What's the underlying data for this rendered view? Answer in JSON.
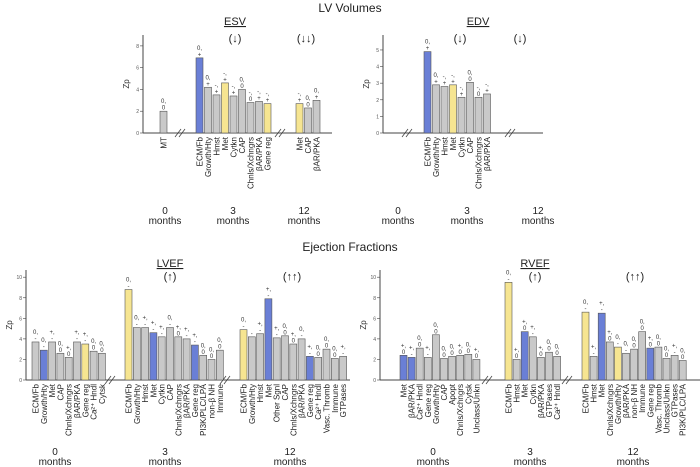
{
  "titles": {
    "top": "LV Volumes",
    "bottom": "Ejection Fractions"
  },
  "colors": {
    "gray": "#c9c9c9",
    "blue": "#6a7fd6",
    "yellow": "#f6e591",
    "axis": "#444444"
  },
  "chart_data": [
    {
      "type": "bar",
      "title": "ESV",
      "ylabel": "Zp",
      "ylim": [
        0,
        9
      ],
      "yticks": [
        0,
        2,
        4,
        6,
        8
      ],
      "groups": [
        {
          "time": "0",
          "unit": "months",
          "arrow": "",
          "bars": [
            {
              "label": "MT",
              "value": 2.0,
              "color": "gray",
              "note": "0,|0"
            }
          ]
        },
        {
          "time": "3",
          "unit": "months",
          "arrow": "(↓)",
          "bars": [
            {
              "label": "ECM/Fb",
              "value": 6.9,
              "color": "blue",
              "note": "0,|+"
            },
            {
              "label": "Growth/Hty",
              "value": 4.2,
              "color": "gray",
              "note": "0,|+"
            },
            {
              "label": "Hmst",
              "value": 3.5,
              "color": "gray",
              "note": "-,|+"
            },
            {
              "label": "Met",
              "value": 4.6,
              "color": "yellow",
              "note": "-,|+"
            },
            {
              "label": "Cytkn",
              "value": 3.4,
              "color": "gray",
              "note": "-,|+"
            },
            {
              "label": "CAP",
              "value": 4.0,
              "color": "gray",
              "note": "0,|0"
            },
            {
              "label": "Chnls/Xchngrs",
              "value": 2.8,
              "color": "gray",
              "note": "-,|0"
            },
            {
              "label": "βAR/PKA",
              "value": 2.9,
              "color": "gray",
              "note": "-,|+"
            },
            {
              "label": "Gene reg",
              "value": 2.7,
              "color": "yellow",
              "note": "-,|+"
            }
          ]
        },
        {
          "time": "12",
          "unit": "months",
          "arrow": "(↓↓)",
          "bars": [
            {
              "label": "Met",
              "value": 2.7,
              "color": "yellow",
              "note": "-,|+"
            },
            {
              "label": "CAP",
              "value": 2.3,
              "color": "gray",
              "note": "0,|0"
            },
            {
              "label": "βAR/PKA",
              "value": 3.0,
              "color": "gray",
              "note": "0,|+"
            }
          ]
        }
      ]
    },
    {
      "type": "bar",
      "title": "EDV",
      "ylabel": "Zp",
      "ylim": [
        0,
        5.9
      ],
      "yticks": [
        0,
        1,
        2,
        3,
        4,
        5
      ],
      "groups": [
        {
          "time": "0",
          "unit": "months",
          "arrow": "",
          "bars": []
        },
        {
          "time": "3",
          "unit": "months",
          "arrow": "(↓)",
          "bars": [
            {
              "label": "ECM/Fb",
              "value": 4.9,
              "color": "blue",
              "note": "0,|+"
            },
            {
              "label": "Growth/Hty",
              "value": 2.9,
              "color": "gray",
              "note": "0,|+"
            },
            {
              "label": "Hmst",
              "value": 2.8,
              "color": "gray",
              "note": "-,|+"
            },
            {
              "label": "Met",
              "value": 2.9,
              "color": "yellow",
              "note": "-,|+"
            },
            {
              "label": "Cytkn",
              "value": 2.15,
              "color": "gray",
              "note": "-,|+"
            },
            {
              "label": "CAP",
              "value": 3.05,
              "color": "gray",
              "note": "0,|0"
            },
            {
              "label": "Chnls/Xchngrs",
              "value": 2.15,
              "color": "gray",
              "note": "-,|0"
            },
            {
              "label": "βAR/PKA",
              "value": 2.35,
              "color": "gray",
              "note": "-,|+"
            }
          ]
        },
        {
          "time": "12",
          "unit": "months",
          "arrow": "(↓)",
          "bars": []
        }
      ]
    },
    {
      "type": "bar",
      "title": "LVEF",
      "ylabel": "Zp",
      "ylim": [
        0,
        10.7
      ],
      "yticks": [
        0,
        2,
        4,
        6,
        8,
        10
      ],
      "groups": [
        {
          "time": "0",
          "unit": "months",
          "arrow": "",
          "bars": [
            {
              "label": "ECM/Fb",
              "value": 3.7,
              "color": "gray",
              "note": "0,|-"
            },
            {
              "label": "Growth/Hty",
              "value": 2.9,
              "color": "blue",
              "note": "0,|-"
            },
            {
              "label": "Met",
              "value": 3.7,
              "color": "gray",
              "note": "+,|-"
            },
            {
              "label": "CAP",
              "value": 2.6,
              "color": "gray",
              "note": "0,|0"
            },
            {
              "label": "Chnls/Xchngrs",
              "value": 2.2,
              "color": "gray",
              "note": "+,|0"
            },
            {
              "label": "βAR/PKA",
              "value": 3.7,
              "color": "gray",
              "note": "+,|-"
            },
            {
              "label": "Gene reg",
              "value": 3.5,
              "color": "yellow",
              "note": "+,|-"
            },
            {
              "label": "Ca²⁺ Hndl",
              "value": 2.8,
              "color": "gray",
              "note": "0,|0"
            },
            {
              "label": "Cytsk",
              "value": 2.6,
              "color": "gray",
              "note": "0,|0"
            }
          ]
        },
        {
          "time": "3",
          "unit": "months",
          "arrow": "(↑)",
          "bars": [
            {
              "label": "ECM/Fb",
              "value": 8.8,
              "color": "yellow",
              "note": "0,|-"
            },
            {
              "label": "Growth/Hty",
              "value": 5.1,
              "color": "gray",
              "note": "0,|-"
            },
            {
              "label": "Hmst",
              "value": 5.1,
              "color": "gray",
              "note": "+,|-"
            },
            {
              "label": "Met",
              "value": 4.6,
              "color": "blue",
              "note": "+,|-"
            },
            {
              "label": "Cytkn",
              "value": 4.2,
              "color": "gray",
              "note": "+,|-"
            },
            {
              "label": "CAP",
              "value": 5.1,
              "color": "gray",
              "note": "0,|-"
            },
            {
              "label": "Chnls/Xchngrs",
              "value": 4.2,
              "color": "gray",
              "note": "+,|0"
            },
            {
              "label": "βAR/PKA",
              "value": 4.0,
              "color": "gray",
              "note": "+,|-"
            },
            {
              "label": "Gene reg",
              "value": 3.4,
              "color": "blue",
              "note": "+,|-"
            },
            {
              "label": "PI3K/PLC/LPA",
              "value": 2.4,
              "color": "gray",
              "note": "0,|0"
            },
            {
              "label": "non-β NH",
              "value": 2.0,
              "color": "gray",
              "note": "0,|0"
            },
            {
              "label": "Immune",
              "value": 2.9,
              "color": "gray",
              "note": "0,|0"
            }
          ]
        },
        {
          "time": "12",
          "unit": "months",
          "arrow": "(↑↑)",
          "bars": [
            {
              "label": "ECM/Fb",
              "value": 4.9,
              "color": "yellow",
              "note": "0,|-"
            },
            {
              "label": "Growth/Hty",
              "value": 4.2,
              "color": "gray",
              "note": "|-"
            },
            {
              "label": "Hmst",
              "value": 4.5,
              "color": "gray",
              "note": "+,|-"
            },
            {
              "label": "Met",
              "value": 7.9,
              "color": "blue",
              "note": "+,|-"
            },
            {
              "label": "Other Sgnl",
              "value": 4.1,
              "color": "gray",
              "note": "+,|-"
            },
            {
              "label": "CAP",
              "value": 4.3,
              "color": "gray",
              "note": "0,|0"
            },
            {
              "label": "Chnls/Xchngrs",
              "value": 3.5,
              "color": "gray",
              "note": "+,|0"
            },
            {
              "label": "βAR/PKA",
              "value": 4.0,
              "color": "gray",
              "note": "0,|-"
            },
            {
              "label": "Gene reg",
              "value": 2.3,
              "color": "blue",
              "note": "+,|-"
            },
            {
              "label": "Ca²⁺ Hndl",
              "value": 2.2,
              "color": "gray",
              "note": "0,|0"
            },
            {
              "label": "Vasc. Thromb",
              "value": 3.0,
              "color": "gray",
              "note": "0,|0"
            },
            {
              "label": "Immune",
              "value": 2.1,
              "color": "gray",
              "note": "0,|0"
            },
            {
              "label": "GTPases",
              "value": 2.3,
              "color": "gray",
              "note": "+,|-"
            }
          ]
        }
      ]
    },
    {
      "type": "bar",
      "title": "RVEF",
      "ylabel": "Zp",
      "ylim": [
        0,
        10.7
      ],
      "yticks": [
        0,
        2,
        4,
        6,
        8,
        10
      ],
      "groups": [
        {
          "time": "0",
          "unit": "months",
          "arrow": "",
          "bars": [
            {
              "label": "Met",
              "value": 2.4,
              "color": "blue",
              "note": "+,|0"
            },
            {
              "label": "βAR/PKA",
              "value": 2.2,
              "color": "blue",
              "note": "+,|-"
            },
            {
              "label": "Ca²⁺ Hndl",
              "value": 3.1,
              "color": "gray",
              "note": "0,|0"
            },
            {
              "label": "Gene reg",
              "value": 2.2,
              "color": "gray",
              "note": "+,|-"
            },
            {
              "label": "Growth/Hty",
              "value": 4.4,
              "color": "gray",
              "note": "0,|0"
            },
            {
              "label": "CAP",
              "value": 2.1,
              "color": "gray",
              "note": "0,|0"
            },
            {
              "label": "Apopt",
              "value": 2.3,
              "color": "gray",
              "note": "0,|0"
            },
            {
              "label": "Chnls/Xchngrs",
              "value": 2.4,
              "color": "gray",
              "note": "+,|0"
            },
            {
              "label": "Cytsk",
              "value": 2.5,
              "color": "gray",
              "note": "0,|0"
            },
            {
              "label": "Unclass/Unkn",
              "value": 2.0,
              "color": "gray",
              "note": "+,|0"
            }
          ]
        },
        {
          "time": "3",
          "unit": "months",
          "arrow": "(↑)",
          "bars": [
            {
              "label": "ECM/Fb",
              "value": 9.5,
              "color": "yellow",
              "note": "0,|-"
            },
            {
              "label": "Hmst",
              "value": 2.0,
              "color": "gray",
              "note": "+,|0"
            },
            {
              "label": "Met",
              "value": 4.7,
              "color": "blue",
              "note": "+,|0"
            },
            {
              "label": "Cytkn",
              "value": 4.2,
              "color": "gray",
              "note": "+,|-"
            },
            {
              "label": "βAR/PKA",
              "value": 2.2,
              "color": "gray",
              "note": "+,|0"
            },
            {
              "label": "GTPases",
              "value": 2.7,
              "color": "gray",
              "note": "0,|0"
            },
            {
              "label": "Ca²⁺ Hndl",
              "value": 2.3,
              "color": "gray",
              "note": "0,|0"
            }
          ]
        },
        {
          "time": "12",
          "unit": "months",
          "arrow": "(↑↑)",
          "bars": [
            {
              "label": "ECM/Fb",
              "value": 6.6,
              "color": "yellow",
              "note": "0,|-"
            },
            {
              "label": "Hmst",
              "value": 2.3,
              "color": "gray",
              "note": "+,|-"
            },
            {
              "label": "Met",
              "value": 6.5,
              "color": "blue",
              "note": "+,|-"
            },
            {
              "label": "Chnls/Xchngrs",
              "value": 3.7,
              "color": "gray",
              "note": "+,|0"
            },
            {
              "label": "Growth/Hty",
              "value": 3.2,
              "color": "yellow",
              "note": "0,|-"
            },
            {
              "label": "βAR/PKA",
              "value": 2.6,
              "color": "gray",
              "note": "0,|-"
            },
            {
              "label": "non-β NH",
              "value": 3.0,
              "color": "gray",
              "note": "0,|0"
            },
            {
              "label": "Immune",
              "value": 4.7,
              "color": "gray",
              "note": "0,|0"
            },
            {
              "label": "Gene reg",
              "value": 3.1,
              "color": "blue",
              "note": "+,|0"
            },
            {
              "label": "Vasc. Thromb",
              "value": 3.2,
              "color": "gray",
              "note": "0,|0"
            },
            {
              "label": "Unclass/Unkn",
              "value": 2.1,
              "color": "gray",
              "note": "0,|0"
            },
            {
              "label": "GTPases",
              "value": 2.4,
              "color": "gray",
              "note": "+,|-"
            },
            {
              "label": "PI3K/PLC/LPA",
              "value": 1.9,
              "color": "gray",
              "note": "0,|0"
            }
          ]
        }
      ]
    }
  ]
}
